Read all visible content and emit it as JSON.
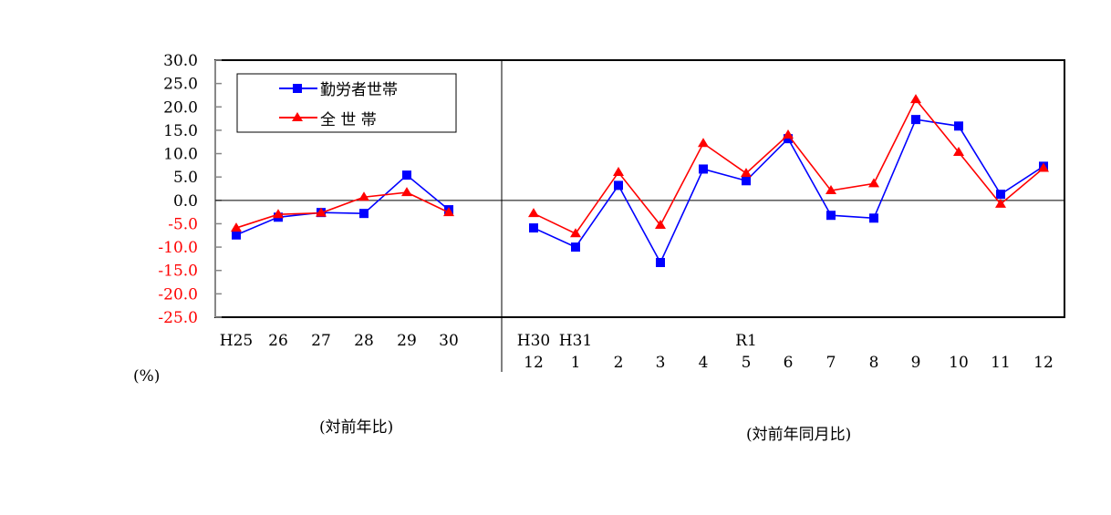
{
  "chart_data": [
    {
      "type": "line",
      "panel": "annual",
      "caption": "(対前年比)",
      "unit_label": "(%)",
      "categories": [
        "H25",
        "26",
        "27",
        "28",
        "29",
        "30"
      ],
      "ylim": [
        -25,
        30
      ],
      "yticks": [
        "30.0",
        "25.0",
        "20.0",
        "15.0",
        "10.0",
        "5.0",
        "0.0",
        "-5.0",
        "-10.0",
        "-15.0",
        "-20.0",
        "-25.0"
      ],
      "series": [
        {
          "name": "勤労者世帯",
          "color": "#0000ff",
          "marker": "square",
          "values": [
            -7.4,
            -3.6,
            -2.6,
            -2.8,
            5.4,
            -2.0
          ]
        },
        {
          "name": "全 世 帯",
          "color": "#ff0000",
          "marker": "triangle",
          "values": [
            -5.9,
            -3.0,
            -2.7,
            0.7,
            1.7,
            -2.6
          ]
        }
      ]
    },
    {
      "type": "line",
      "panel": "monthly",
      "caption": "(対前年同月比)",
      "categories_top": [
        "H30",
        "H31",
        "",
        "",
        "",
        "R1",
        "",
        "",
        "",
        "",
        "",
        "",
        ""
      ],
      "categories": [
        "12",
        "1",
        "2",
        "3",
        "4",
        "5",
        "6",
        "7",
        "8",
        "9",
        "10",
        "11",
        "12"
      ],
      "ylim": [
        -25,
        30
      ],
      "series": [
        {
          "name": "勤労者世帯",
          "color": "#0000ff",
          "marker": "square",
          "values": [
            -5.9,
            -10.0,
            3.2,
            -13.3,
            6.7,
            4.2,
            13.2,
            -3.2,
            -3.8,
            17.3,
            15.9,
            1.3,
            7.3
          ]
        },
        {
          "name": "全 世 帯",
          "color": "#ff0000",
          "marker": "triangle",
          "values": [
            -2.8,
            -7.1,
            6.0,
            -5.3,
            12.2,
            5.8,
            14.0,
            2.1,
            3.6,
            21.6,
            10.3,
            -0.8,
            6.9
          ]
        }
      ]
    }
  ],
  "legend": {
    "items": [
      "勤労者世帯",
      "全 世 帯"
    ],
    "placement": "top-left"
  },
  "negative_tick_color": "#ff0000"
}
